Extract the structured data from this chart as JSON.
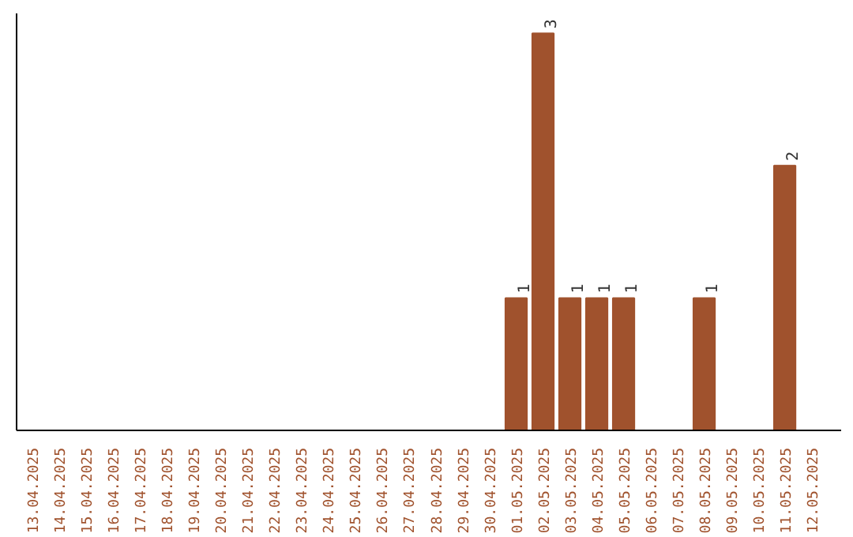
{
  "chart_data": {
    "type": "bar",
    "color": "#a0522d",
    "categories": [
      "13.04.2025",
      "14.04.2025",
      "15.04.2025",
      "16.04.2025",
      "17.04.2025",
      "18.04.2025",
      "19.04.2025",
      "20.04.2025",
      "21.04.2025",
      "22.04.2025",
      "23.04.2025",
      "24.04.2025",
      "25.04.2025",
      "26.04.2025",
      "27.04.2025",
      "28.04.2025",
      "29.04.2025",
      "30.04.2025",
      "01.05.2025",
      "02.05.2025",
      "03.05.2025",
      "04.05.2025",
      "05.05.2025",
      "06.05.2025",
      "07.05.2025",
      "08.05.2025",
      "09.05.2025",
      "10.05.2025",
      "11.05.2025",
      "12.05.2025"
    ],
    "values": [
      null,
      null,
      null,
      null,
      null,
      null,
      null,
      null,
      null,
      null,
      null,
      null,
      null,
      null,
      null,
      null,
      null,
      null,
      1,
      3,
      1,
      1,
      1,
      null,
      null,
      1,
      null,
      null,
      2,
      null
    ],
    "data_labels": true,
    "grid": false
  }
}
